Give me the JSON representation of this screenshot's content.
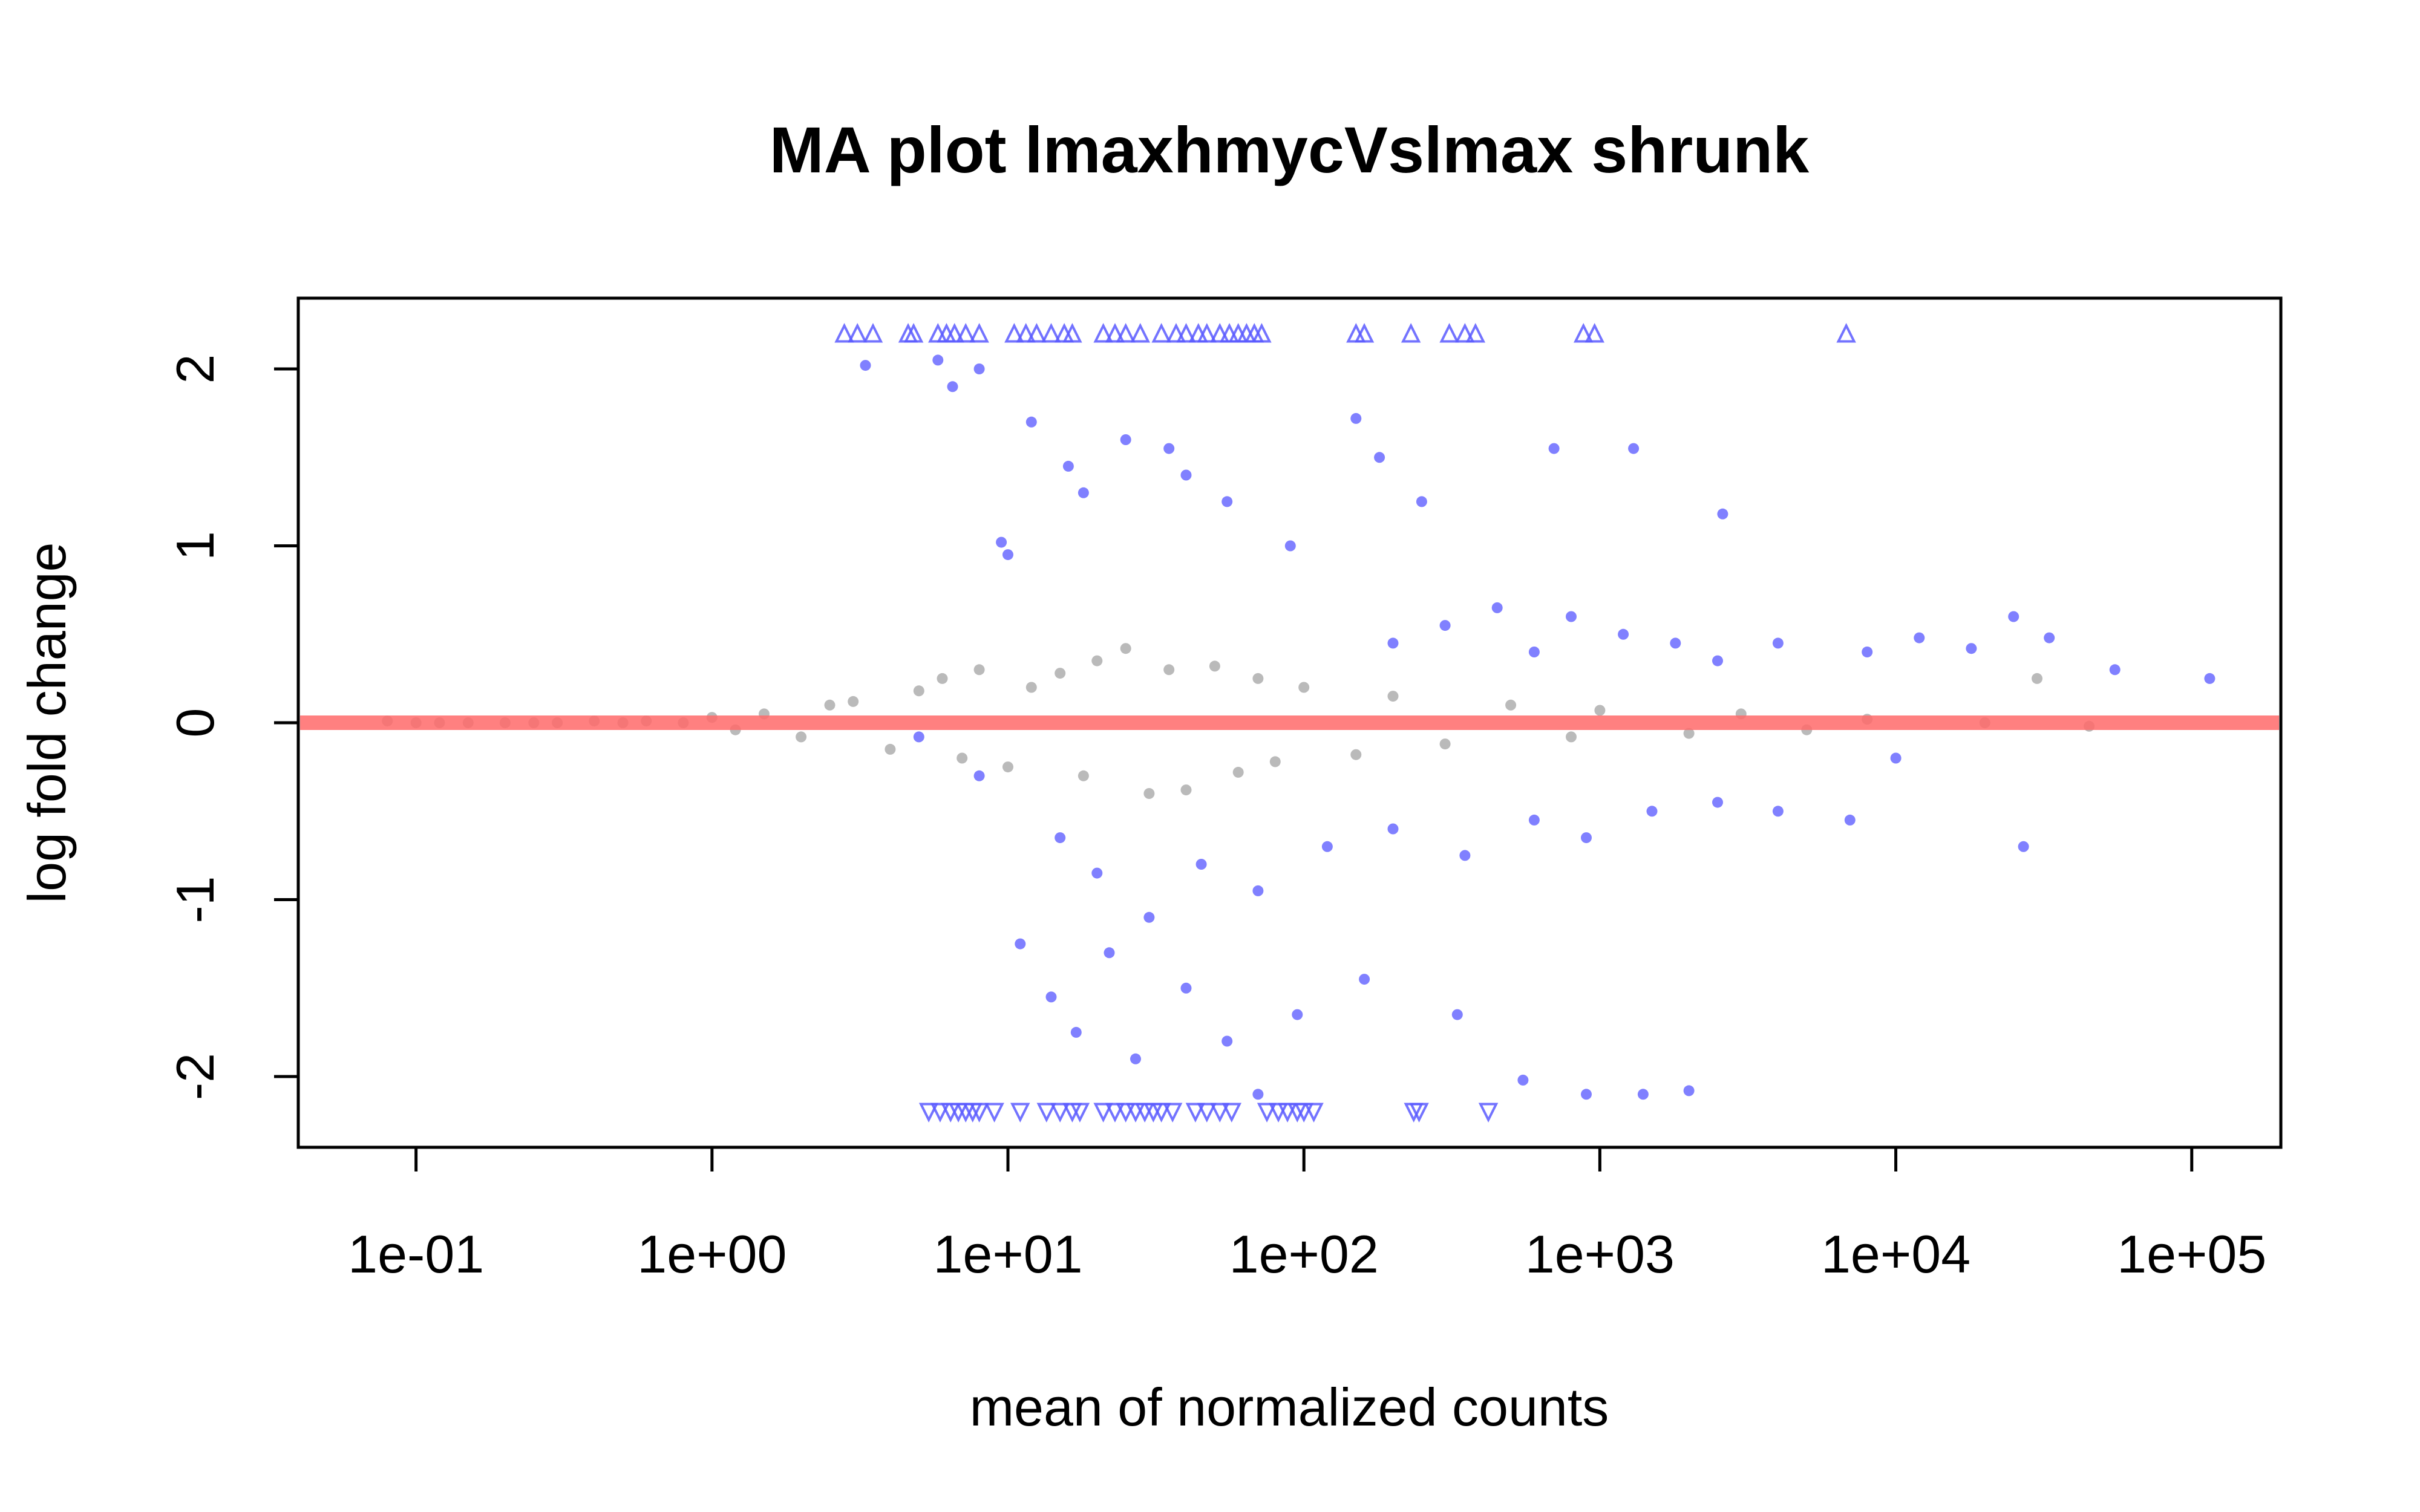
{
  "chart_data": {
    "type": "scatter",
    "title": "MA plot lmaxhmycVslmax shrunk",
    "xlabel": "mean of normalized counts",
    "ylabel": "log fold change",
    "xscale": "log10",
    "xlim": [
      0.04,
      200000
    ],
    "ylim": [
      -2.4,
      2.4
    ],
    "x_ticks": [
      0.1,
      1,
      10,
      100,
      1000,
      10000,
      100000
    ],
    "x_tick_labels": [
      "1e-01",
      "1e+00",
      "1e+01",
      "1e+02",
      "1e+03",
      "1e+04",
      "1e+05"
    ],
    "y_ticks": [
      -2,
      -1,
      0,
      1,
      2
    ],
    "y_tick_labels": [
      "-2",
      "-1",
      "0",
      "1",
      "2"
    ],
    "grid": false,
    "reference_line": {
      "y": 0,
      "color": "#ff6a6a"
    },
    "series": [
      {
        "role": "not significant",
        "color": "#8c8c8c",
        "marker": "circle",
        "points": [
          [
            0.08,
            0.01
          ],
          [
            0.1,
            0.0
          ],
          [
            0.12,
            0.0
          ],
          [
            0.15,
            0.0
          ],
          [
            0.2,
            0.0
          ],
          [
            0.25,
            0.0
          ],
          [
            0.3,
            0.0
          ],
          [
            0.4,
            0.01
          ],
          [
            0.5,
            0.0
          ],
          [
            0.6,
            0.01
          ],
          [
            0.8,
            0.0
          ],
          [
            1.0,
            0.03
          ],
          [
            1.2,
            -0.04
          ],
          [
            1.5,
            0.05
          ],
          [
            2.0,
            -0.08
          ],
          [
            2.5,
            0.1
          ],
          [
            3.0,
            0.12
          ],
          [
            4.0,
            -0.15
          ],
          [
            5.0,
            0.18
          ],
          [
            6.0,
            0.25
          ],
          [
            7.0,
            -0.2
          ],
          [
            8.0,
            0.3
          ],
          [
            10.0,
            -0.25
          ],
          [
            12.0,
            0.2
          ],
          [
            15.0,
            0.28
          ],
          [
            18.0,
            -0.3
          ],
          [
            20.0,
            0.35
          ],
          [
            25.0,
            0.42
          ],
          [
            30.0,
            -0.4
          ],
          [
            35.0,
            0.3
          ],
          [
            40.0,
            -0.38
          ],
          [
            50.0,
            0.32
          ],
          [
            60.0,
            -0.28
          ],
          [
            70.0,
            0.25
          ],
          [
            80.0,
            -0.22
          ],
          [
            100.0,
            0.2
          ],
          [
            150.0,
            -0.18
          ],
          [
            200.0,
            0.15
          ],
          [
            300.0,
            -0.12
          ],
          [
            500.0,
            0.1
          ],
          [
            800.0,
            -0.08
          ],
          [
            1000.0,
            0.07
          ],
          [
            2000.0,
            -0.06
          ],
          [
            3000.0,
            0.05
          ],
          [
            5000.0,
            -0.04
          ],
          [
            8000.0,
            0.02
          ],
          [
            20000.0,
            0.0
          ],
          [
            30000.0,
            0.25
          ],
          [
            45000.0,
            -0.02
          ]
        ]
      },
      {
        "role": "significant (padj < 0.1)",
        "color": "#2b2bff",
        "marker": "circle",
        "points": [
          [
            3.3,
            2.02
          ],
          [
            5.8,
            2.05
          ],
          [
            6.5,
            1.9
          ],
          [
            8.0,
            2.0
          ],
          [
            12.0,
            1.7
          ],
          [
            10.0,
            0.95
          ],
          [
            9.5,
            1.02
          ],
          [
            16.0,
            1.45
          ],
          [
            18.0,
            1.3
          ],
          [
            25.0,
            1.6
          ],
          [
            35.0,
            1.55
          ],
          [
            40.0,
            1.4
          ],
          [
            55.0,
            1.25
          ],
          [
            90.0,
            1.0
          ],
          [
            150.0,
            1.72
          ],
          [
            180.0,
            1.5
          ],
          [
            250.0,
            1.25
          ],
          [
            700.0,
            1.55
          ],
          [
            1300.0,
            1.55
          ],
          [
            2600.0,
            1.18
          ],
          [
            200.0,
            0.45
          ],
          [
            300.0,
            0.55
          ],
          [
            450.0,
            0.65
          ],
          [
            600.0,
            0.4
          ],
          [
            800.0,
            0.6
          ],
          [
            1200.0,
            0.5
          ],
          [
            1800.0,
            0.45
          ],
          [
            2500.0,
            0.35
          ],
          [
            4000.0,
            0.45
          ],
          [
            8000.0,
            0.4
          ],
          [
            12000.0,
            0.48
          ],
          [
            18000.0,
            0.42
          ],
          [
            25000.0,
            0.6
          ],
          [
            33000.0,
            0.48
          ],
          [
            55000.0,
            0.3
          ],
          [
            115000.0,
            0.25
          ],
          [
            5.0,
            -0.08
          ],
          [
            8.0,
            -0.3
          ],
          [
            15.0,
            -0.65
          ],
          [
            20.0,
            -0.85
          ],
          [
            30.0,
            -1.1
          ],
          [
            45.0,
            -0.8
          ],
          [
            70.0,
            -0.95
          ],
          [
            120.0,
            -0.7
          ],
          [
            200.0,
            -0.6
          ],
          [
            350.0,
            -0.75
          ],
          [
            600.0,
            -0.55
          ],
          [
            900.0,
            -0.65
          ],
          [
            1500.0,
            -0.5
          ],
          [
            2500.0,
            -0.45
          ],
          [
            4000.0,
            -0.5
          ],
          [
            7000.0,
            -0.55
          ],
          [
            10000.0,
            -0.2
          ],
          [
            11.0,
            -1.25
          ],
          [
            14.0,
            -1.55
          ],
          [
            17.0,
            -1.75
          ],
          [
            22.0,
            -1.3
          ],
          [
            27.0,
            -1.9
          ],
          [
            40.0,
            -1.5
          ],
          [
            55.0,
            -1.8
          ],
          [
            70.0,
            -2.1
          ],
          [
            95.0,
            -1.65
          ],
          [
            160.0,
            -1.45
          ],
          [
            330.0,
            -1.65
          ],
          [
            550.0,
            -2.02
          ],
          [
            900.0,
            -2.1
          ],
          [
            1400.0,
            -2.1
          ],
          [
            2000.0,
            -2.08
          ],
          [
            27000.0,
            -0.7
          ]
        ]
      },
      {
        "role": "significant, above plot range",
        "color": "#5a5aff",
        "marker": "triangle-up",
        "y": 2.2,
        "x": [
          2.8,
          3.1,
          3.5,
          4.6,
          4.8,
          5.8,
          6.2,
          6.6,
          7.2,
          8.0,
          10.5,
          11.5,
          12.5,
          14.0,
          15.5,
          16.5,
          21,
          23,
          25,
          28,
          33,
          37,
          40,
          44,
          47,
          52,
          56,
          60,
          64,
          68,
          72,
          150,
          160,
          230,
          310,
          350,
          380,
          880,
          960,
          6800
        ]
      },
      {
        "role": "significant, below plot range",
        "color": "#5a5aff",
        "marker": "triangle-down",
        "y": -2.2,
        "x": [
          5.4,
          5.9,
          6.4,
          6.8,
          7.2,
          7.6,
          8.0,
          9.0,
          11.0,
          13.5,
          15.0,
          16.5,
          17.5,
          21,
          23,
          25,
          27,
          29,
          31,
          33,
          36,
          43,
          47,
          52,
          57,
          75,
          82,
          88,
          95,
          100,
          108,
          235,
          245,
          420
        ]
      }
    ]
  }
}
